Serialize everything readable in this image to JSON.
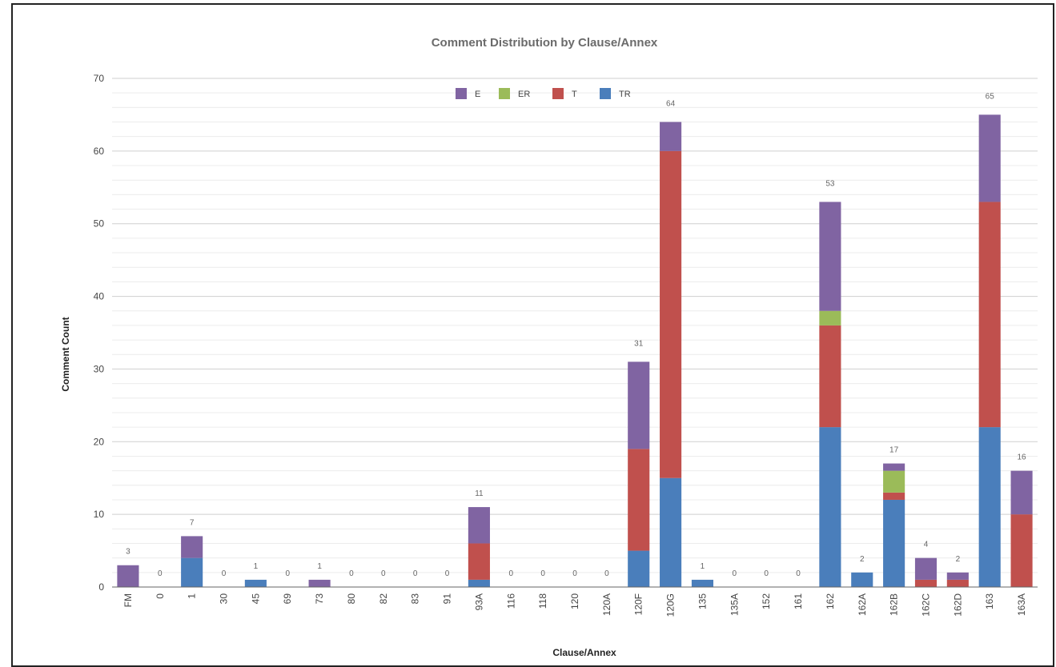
{
  "chart_data": {
    "type": "bar",
    "stacked": true,
    "title": "Comment Distribution by Clause/Annex",
    "xlabel": "Clause/Annex",
    "ylabel": "Comment Count",
    "ylim": [
      0,
      70
    ],
    "yticks": [
      "0",
      "10",
      "20",
      "30",
      "40",
      "50",
      "60",
      "70"
    ],
    "grid": true,
    "legend_position": "top",
    "categories": [
      "FM",
      "0",
      "1",
      "30",
      "45",
      "69",
      "73",
      "80",
      "82",
      "83",
      "91",
      "93A",
      "116",
      "118",
      "120",
      "120A",
      "120F",
      "120G",
      "135",
      "135A",
      "152",
      "161",
      "162",
      "162A",
      "162B",
      "162C",
      "162D",
      "163",
      "163A"
    ],
    "totals": [
      "3",
      "0",
      "7",
      "0",
      "1",
      "0",
      "1",
      "0",
      "0",
      "0",
      "0",
      "11",
      "0",
      "0",
      "0",
      "0",
      "31",
      "64",
      "1",
      "0",
      "0",
      "0",
      "53",
      "2",
      "17",
      "4",
      "2",
      "65",
      "16"
    ],
    "series": [
      {
        "name": "TR",
        "color": "#4a7ebb",
        "values": [
          0,
          0,
          4,
          0,
          1,
          0,
          0,
          0,
          0,
          0,
          0,
          1,
          0,
          0,
          0,
          0,
          5,
          15,
          1,
          0,
          0,
          0,
          22,
          2,
          12,
          0,
          0,
          22,
          0
        ]
      },
      {
        "name": "T",
        "color": "#c0504d",
        "values": [
          0,
          0,
          0,
          0,
          0,
          0,
          0,
          0,
          0,
          0,
          0,
          5,
          0,
          0,
          0,
          0,
          14,
          45,
          0,
          0,
          0,
          0,
          14,
          0,
          1,
          1,
          1,
          31,
          10
        ]
      },
      {
        "name": "ER",
        "color": "#9bbb59",
        "values": [
          0,
          0,
          0,
          0,
          0,
          0,
          0,
          0,
          0,
          0,
          0,
          0,
          0,
          0,
          0,
          0,
          0,
          0,
          0,
          0,
          0,
          0,
          2,
          0,
          3,
          0,
          0,
          0,
          0
        ]
      },
      {
        "name": "E",
        "color": "#8064a2",
        "values": [
          3,
          0,
          3,
          0,
          0,
          0,
          1,
          0,
          0,
          0,
          0,
          5,
          0,
          0,
          0,
          0,
          12,
          4,
          0,
          0,
          0,
          0,
          15,
          0,
          1,
          3,
          1,
          12,
          6
        ]
      }
    ],
    "legend_order": [
      "E",
      "ER",
      "T",
      "TR"
    ]
  }
}
